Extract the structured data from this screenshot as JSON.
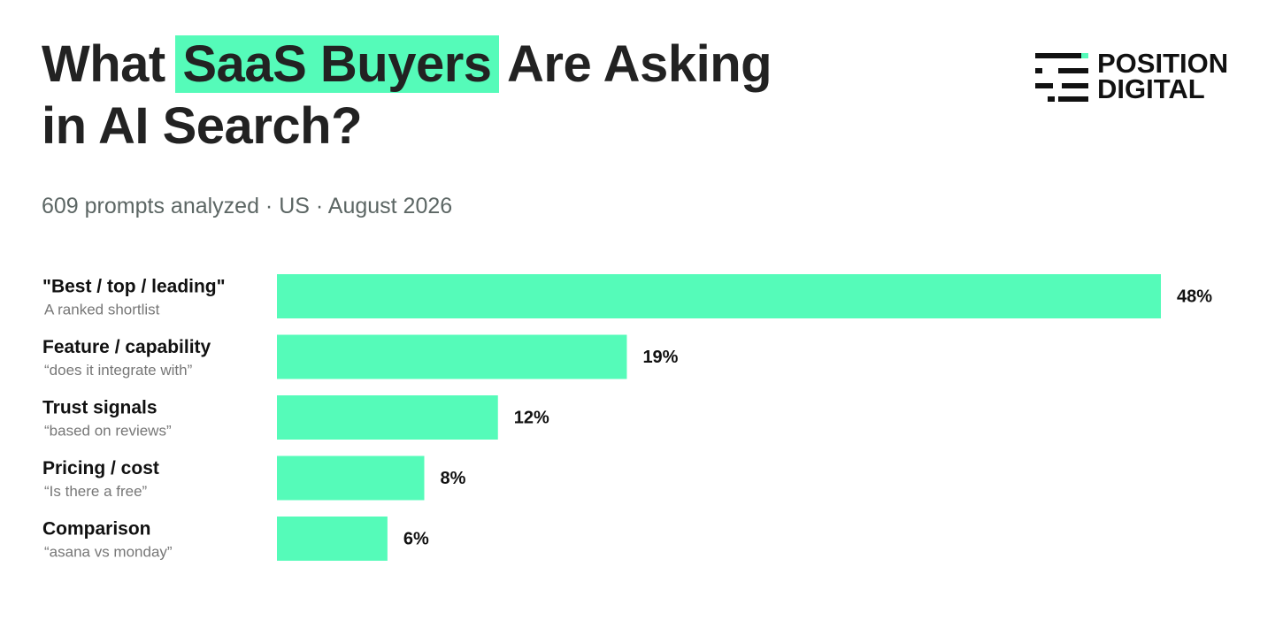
{
  "chart_data": {
    "type": "bar",
    "orientation": "horizontal",
    "title": [
      "What",
      "SaaS Buyers",
      "Are Asking",
      "in AI Search?"
    ],
    "title_highlight": 1,
    "subtitle": "609 prompts analyzed · US · August 2026",
    "logo": [
      "POSITION",
      "DIGITAL"
    ],
    "categories": [
      "\"Best / top / leading\"",
      "Feature / capability",
      "Trust signals",
      "Pricing / cost",
      "Comparison"
    ],
    "sublabels": [
      "A ranked shortlist",
      "“does it integrate with”",
      "“based on reviews”",
      "“Is there a free”",
      "“asana vs monday”"
    ],
    "values": [
      48,
      19,
      12,
      8,
      6
    ],
    "value_labels": [
      "48%",
      "19%",
      "12%",
      "8%",
      "6%"
    ],
    "color": "#55fbb9",
    "highlight_color": "#55fbb9"
  }
}
